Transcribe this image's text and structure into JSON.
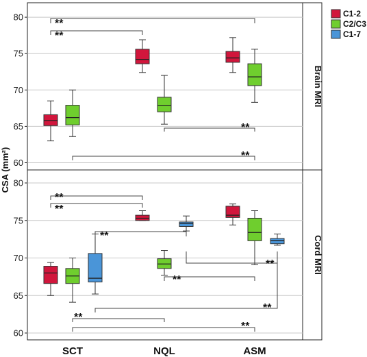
{
  "chart_data": {
    "type": "box",
    "categories": [
      "SCT",
      "NQL",
      "ASM"
    ],
    "ylabel": "CSA (mm²)",
    "legend": {
      "placement": "top-right",
      "entries": [
        {
          "name": "C1-2",
          "color": "#d1163c"
        },
        {
          "name": "C2/C3",
          "color": "#6fce2e"
        },
        {
          "name": "C1-7",
          "color": "#4a95d8"
        }
      ]
    },
    "panels": [
      {
        "label": "Brain MRI",
        "ylim": [
          59,
          81
        ],
        "yticks": [
          60,
          65,
          70,
          75,
          80
        ],
        "grid": true,
        "boxes": [
          {
            "category": "SCT",
            "series": "C1-2",
            "min": 63.0,
            "q1": 65.1,
            "median": 65.8,
            "q3": 66.6,
            "max": 68.5
          },
          {
            "category": "SCT",
            "series": "C2/C3",
            "min": 63.6,
            "q1": 65.2,
            "median": 66.2,
            "q3": 67.9,
            "max": 70.0
          },
          {
            "category": "NQL",
            "series": "C1-2",
            "min": 72.4,
            "q1": 73.6,
            "median": 74.2,
            "q3": 75.6,
            "max": 76.9
          },
          {
            "category": "NQL",
            "series": "C2/C3",
            "min": 65.3,
            "q1": 67.0,
            "median": 67.9,
            "q3": 69.0,
            "max": 72.0
          },
          {
            "category": "ASM",
            "series": "C1-2",
            "min": 72.4,
            "q1": 73.8,
            "median": 74.4,
            "q3": 75.3,
            "max": 77.2
          },
          {
            "category": "ASM",
            "series": "C2/C3",
            "min": 68.3,
            "q1": 70.6,
            "median": 71.8,
            "q3": 73.6,
            "max": 75.6
          }
        ],
        "comparisons": [
          {
            "label": "**"
          },
          {
            "label": "**"
          },
          {
            "label": "**"
          },
          {
            "label": "**"
          }
        ]
      },
      {
        "label": "Cord MRI",
        "ylim": [
          59,
          81
        ],
        "yticks": [
          60,
          65,
          70,
          75,
          80
        ],
        "grid": true,
        "boxes": [
          {
            "category": "SCT",
            "series": "C1-2",
            "min": 65.0,
            "q1": 66.6,
            "median": 68.0,
            "q3": 68.9,
            "max": 69.4
          },
          {
            "category": "SCT",
            "series": "C2/C3",
            "min": 64.1,
            "q1": 66.6,
            "median": 67.6,
            "q3": 68.6,
            "max": 70.0
          },
          {
            "category": "SCT",
            "series": "C1-7",
            "min": 65.2,
            "q1": 66.8,
            "median": 67.3,
            "q3": 70.6,
            "max": 73.2
          },
          {
            "category": "NQL",
            "series": "C1-2",
            "min": 75.0,
            "q1": 75.0,
            "median": 75.3,
            "q3": 75.7,
            "max": 76.3
          },
          {
            "category": "NQL",
            "series": "C2/C3",
            "min": 67.7,
            "q1": 68.6,
            "median": 69.2,
            "q3": 69.9,
            "max": 71.0
          },
          {
            "category": "NQL",
            "series": "C1-7",
            "min": 73.6,
            "q1": 74.2,
            "median": 74.6,
            "q3": 74.8,
            "max": 75.6
          },
          {
            "category": "ASM",
            "series": "C1-2",
            "min": 74.4,
            "q1": 75.4,
            "median": 75.7,
            "q3": 76.9,
            "max": 77.2
          },
          {
            "category": "ASM",
            "series": "C2/C3",
            "min": 69.1,
            "q1": 72.3,
            "median": 73.4,
            "q3": 75.3,
            "max": 76.3
          },
          {
            "category": "ASM",
            "series": "C1-7",
            "min": 71.7,
            "q1": 71.9,
            "median": 72.3,
            "q3": 72.6,
            "max": 73.2
          }
        ],
        "comparisons": [
          {
            "label": "**"
          },
          {
            "label": "**"
          },
          {
            "label": "**"
          },
          {
            "label": "**"
          },
          {
            "label": "**"
          },
          {
            "label": "**"
          },
          {
            "label": "**"
          },
          {
            "label": "**"
          }
        ]
      }
    ]
  }
}
